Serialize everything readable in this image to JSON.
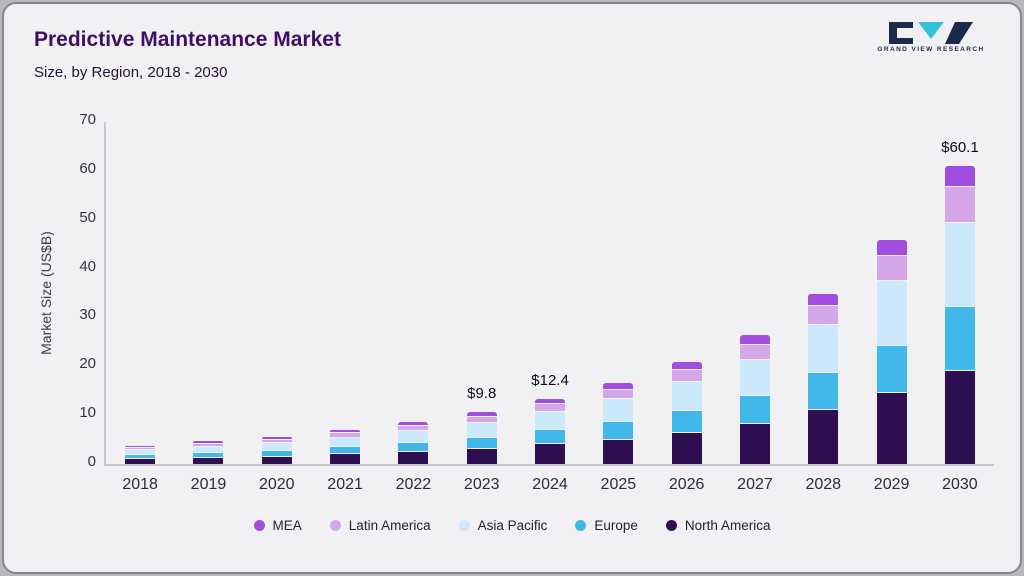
{
  "header": {
    "title": "Predictive Maintenance Market",
    "subtitle": "Size, by Region, 2018 - 2030",
    "logo_text": "GRAND VIEW RESEARCH"
  },
  "chart_data": {
    "type": "bar",
    "stacked": true,
    "title": "Predictive Maintenance Market Size, by Region, 2018 - 2030",
    "xlabel": "",
    "ylabel": "Market Size (US$B)",
    "ylim": [
      0,
      70
    ],
    "yticks": [
      0,
      10,
      20,
      30,
      40,
      50,
      60,
      70
    ],
    "grid": false,
    "legend_position": "bottom",
    "categories": [
      "2018",
      "2019",
      "2020",
      "2021",
      "2022",
      "2023",
      "2024",
      "2025",
      "2026",
      "2027",
      "2028",
      "2029",
      "2030"
    ],
    "series": [
      {
        "name": "North America",
        "color": "#2e1052",
        "values": [
          1.0,
          1.2,
          1.5,
          2.0,
          2.5,
          3.1,
          4.0,
          5.0,
          6.4,
          8.2,
          11.0,
          14.5,
          19.0
        ]
      },
      {
        "name": "Europe",
        "color": "#41b8e9",
        "values": [
          0.6,
          0.8,
          1.0,
          1.3,
          1.7,
          2.1,
          2.7,
          3.4,
          4.3,
          5.5,
          7.4,
          9.5,
          13.0
        ]
      },
      {
        "name": "Asia Pacific",
        "color": "#cbe9fa",
        "values": [
          0.8,
          1.1,
          1.3,
          1.7,
          2.1,
          2.8,
          3.5,
          4.4,
          5.6,
          7.1,
          9.6,
          13.0,
          17.0
        ]
      },
      {
        "name": "Latin America",
        "color": "#d5a6e8",
        "values": [
          0.3,
          0.4,
          0.6,
          0.7,
          0.9,
          1.1,
          1.4,
          1.8,
          2.3,
          2.9,
          3.8,
          5.0,
          7.0
        ]
      },
      {
        "name": "MEA",
        "color": "#a14ee0",
        "values": [
          0.2,
          0.3,
          0.4,
          0.4,
          0.5,
          0.7,
          0.8,
          1.1,
          1.4,
          1.8,
          2.2,
          3.0,
          4.1
        ]
      }
    ],
    "totals": [
      2.9,
      3.8,
      4.8,
      6.1,
      7.7,
      9.8,
      12.4,
      15.7,
      20.0,
      25.5,
      34.0,
      45.0,
      60.1
    ],
    "bar_labels": [
      "",
      "",
      "",
      "",
      "",
      "$9.8",
      "$12.4",
      "",
      "",
      "",
      "",
      "",
      "$60.1"
    ],
    "legend_order": [
      "MEA",
      "Latin America",
      "Asia Pacific",
      "Europe",
      "North America"
    ]
  }
}
